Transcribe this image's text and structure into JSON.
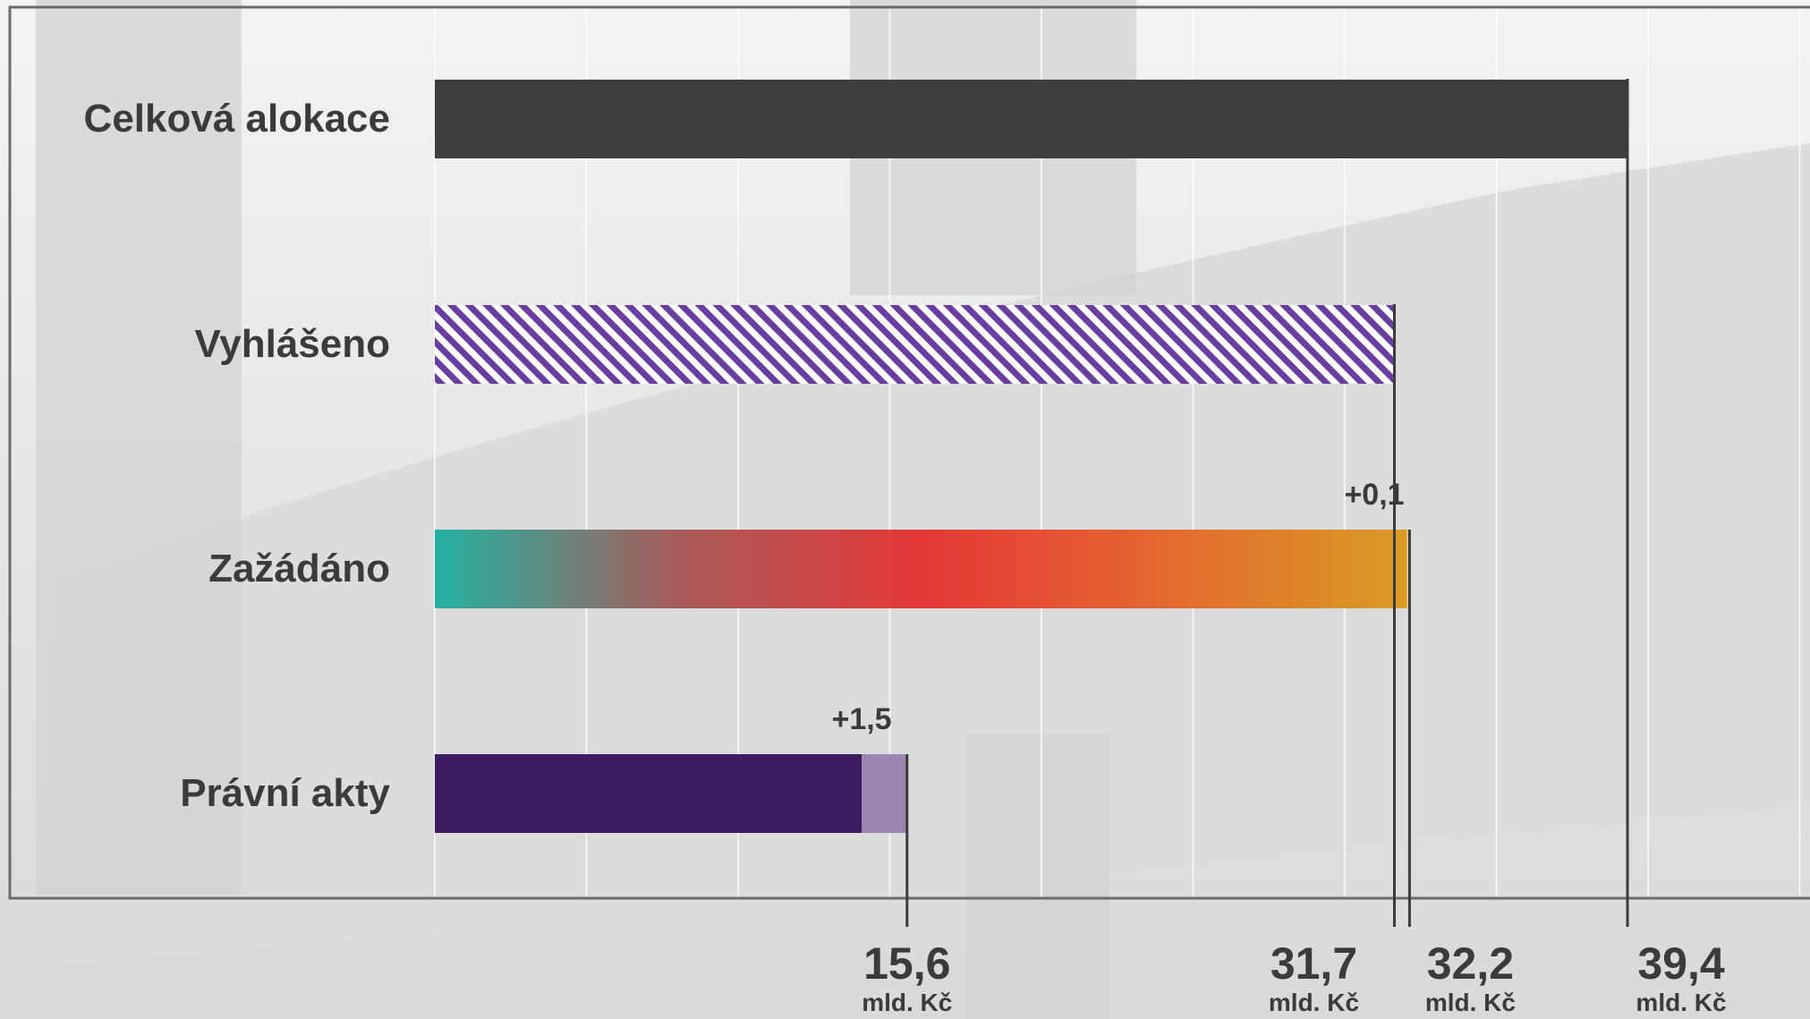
{
  "chart_data": {
    "type": "bar",
    "orientation": "horizontal",
    "title": "",
    "xlabel": "",
    "ylabel": "",
    "xlim": [
      0,
      39.4
    ],
    "grid": true,
    "unit": "mld. Kč",
    "categories": [
      "Celková alokace",
      "Vyhlášeno",
      "Zažádáno",
      "Právní akty"
    ],
    "values": [
      39.4,
      31.7,
      32.1,
      14.1
    ],
    "increments": [
      null,
      null,
      0.1,
      1.5
    ],
    "increment_labels": [
      "",
      "",
      "+0,1",
      "+1,5"
    ],
    "bar_styles": [
      "solid-dark",
      "purple-hatch",
      "gradient",
      "solid-purple"
    ],
    "increment_colors": [
      "",
      "",
      "#e8c388",
      "#9b85b2"
    ],
    "tick_values": [
      15.6,
      31.7,
      32.2,
      39.4
    ],
    "tick_labels": [
      "15,6",
      "31,7",
      "32,2",
      "39,4"
    ],
    "tick_unit_label": "mld. Kč"
  },
  "colors": {
    "text": "#3b3b3b",
    "bar_total": "#3e3e3e",
    "hatch": "#6a3ea1",
    "dark_purple": "#3d1c63",
    "gradient": [
      "#22b2a2",
      "#a85c5a",
      "#e43737",
      "#e4692f",
      "#d99b24"
    ]
  }
}
